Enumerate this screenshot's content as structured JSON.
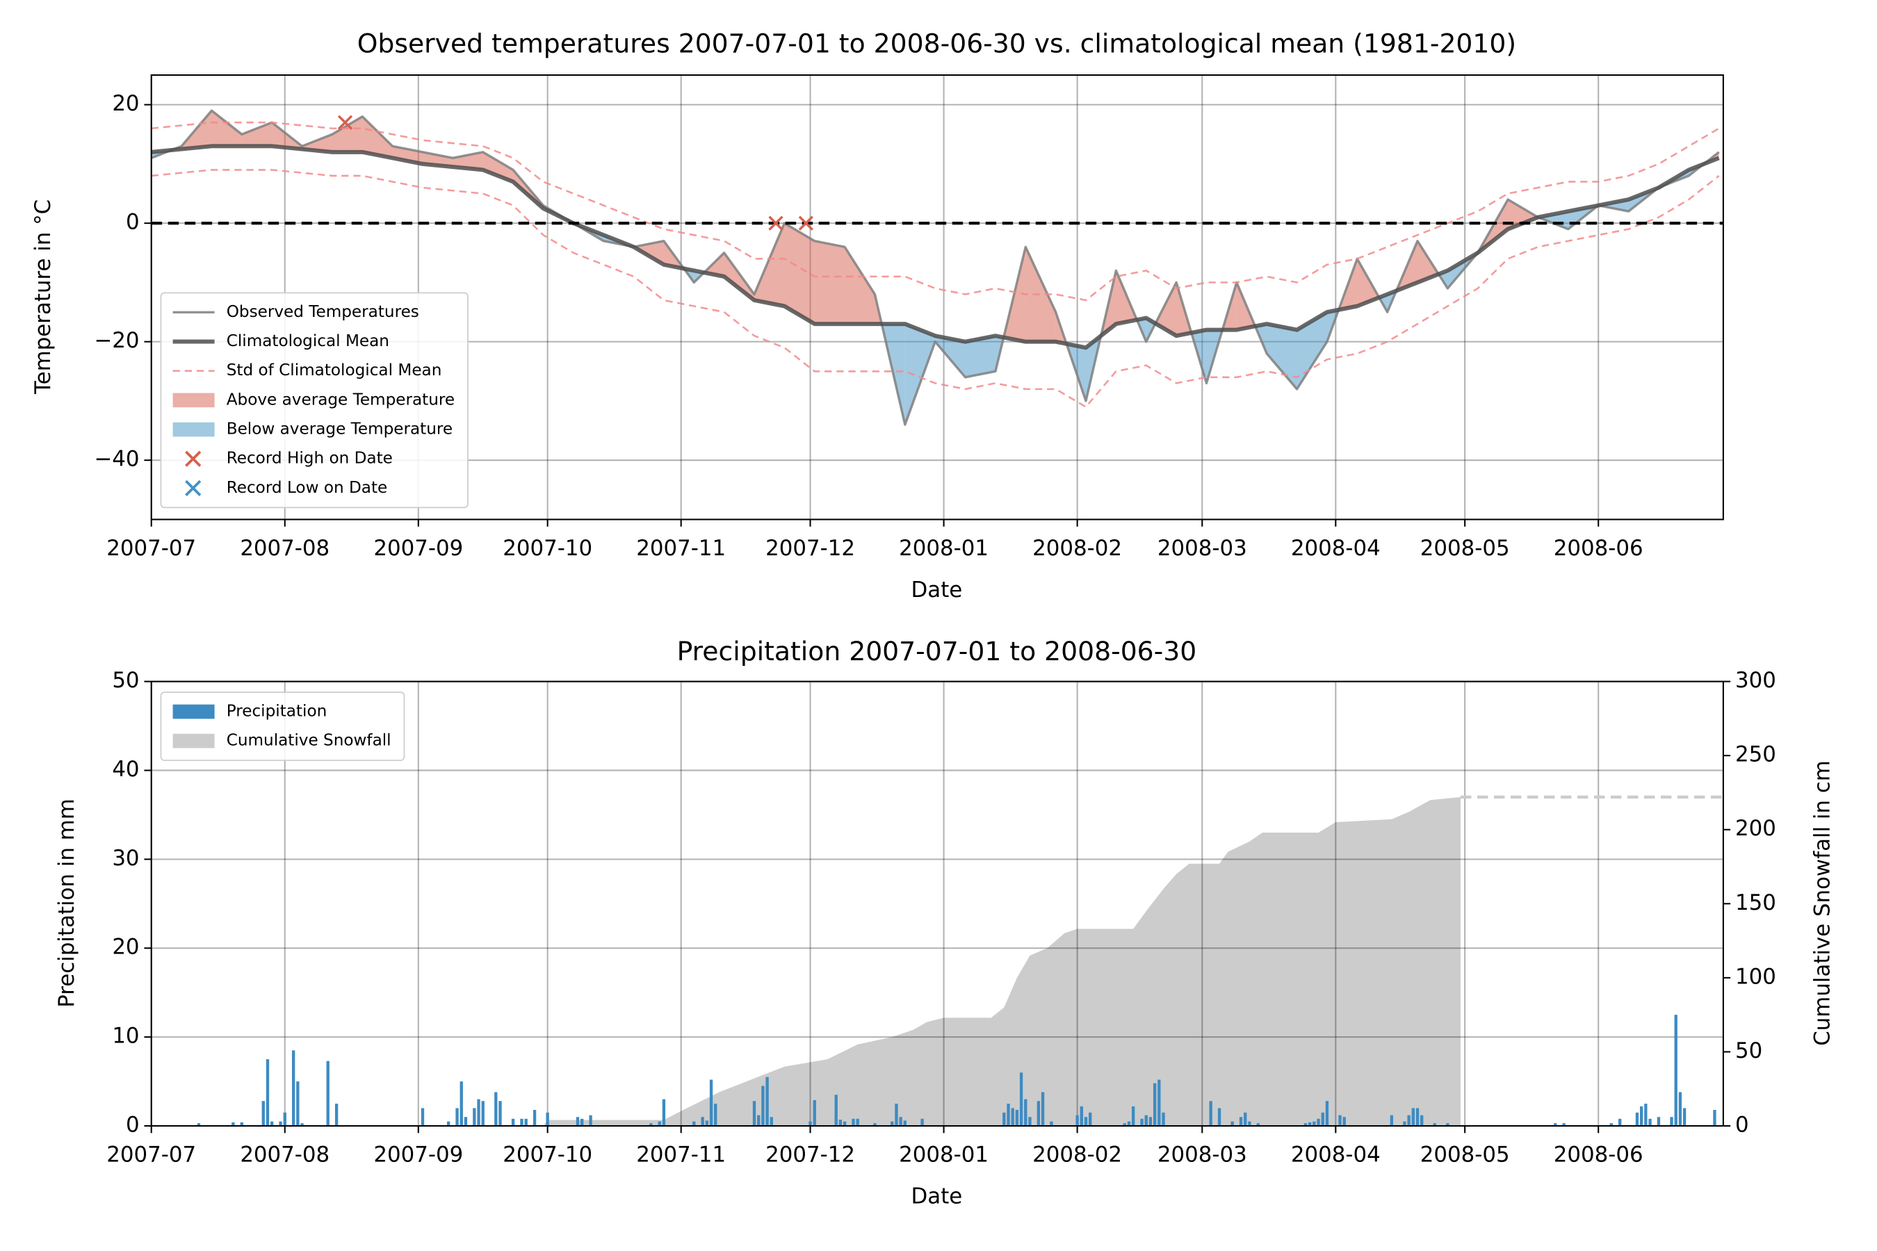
{
  "chart_data": [
    {
      "type": "line",
      "title": "Observed temperatures 2007-07-01 to 2008-06-30 vs. climatological mean (1981-2010)",
      "xlabel": "Date",
      "ylabel": "Temperature in °C",
      "x": [
        "2007-07-01",
        "2007-07-08",
        "2007-07-15",
        "2007-07-22",
        "2007-07-29",
        "2007-08-05",
        "2007-08-12",
        "2007-08-19",
        "2007-08-26",
        "2007-09-02",
        "2007-09-09",
        "2007-09-16",
        "2007-09-23",
        "2007-09-30",
        "2007-10-07",
        "2007-10-14",
        "2007-10-21",
        "2007-10-28",
        "2007-11-04",
        "2007-11-11",
        "2007-11-18",
        "2007-11-25",
        "2007-12-02",
        "2007-12-09",
        "2007-12-16",
        "2007-12-23",
        "2007-12-30",
        "2008-01-06",
        "2008-01-13",
        "2008-01-20",
        "2008-01-27",
        "2008-02-03",
        "2008-02-10",
        "2008-02-17",
        "2008-02-24",
        "2008-03-02",
        "2008-03-09",
        "2008-03-16",
        "2008-03-23",
        "2008-03-30",
        "2008-04-06",
        "2008-04-13",
        "2008-04-20",
        "2008-04-27",
        "2008-05-04",
        "2008-05-11",
        "2008-05-18",
        "2008-05-25",
        "2008-06-01",
        "2008-06-08",
        "2008-06-15",
        "2008-06-22",
        "2008-06-29"
      ],
      "series": [
        {
          "name": "Observed Temperatures",
          "color": "#7f7f7f",
          "values": [
            11,
            13,
            19,
            15,
            17,
            13,
            15,
            18,
            13,
            12,
            11,
            12,
            9,
            3,
            0,
            -3,
            -4,
            -3,
            -10,
            -5,
            -12,
            0,
            -3,
            -4,
            -12,
            -34,
            -20,
            -26,
            -25,
            -4,
            -15,
            -30,
            -8,
            -20,
            -10,
            -27,
            -10,
            -22,
            -28,
            -20,
            -6,
            -15,
            -3,
            -11,
            -5,
            4,
            1,
            -1,
            3,
            2,
            6,
            8,
            12
          ]
        },
        {
          "name": "Climatological Mean",
          "color": "#4d4d4d",
          "values": [
            12,
            12.5,
            13,
            13,
            13,
            12.5,
            12,
            12,
            11,
            10,
            9.5,
            9,
            7,
            2.5,
            0,
            -2,
            -4,
            -7,
            -8,
            -9,
            -13,
            -14,
            -17,
            -17,
            -17,
            -17,
            -19,
            -20,
            -19,
            -20,
            -20,
            -21,
            -17,
            -16,
            -19,
            -18,
            -18,
            -17,
            -18,
            -15,
            -14,
            -12,
            -10,
            -8,
            -5,
            -1,
            1,
            2,
            3,
            4,
            6,
            9,
            11
          ]
        },
        {
          "name": "Std of Climatological Mean",
          "color": "#f28a8a",
          "style": "dashed",
          "upper": [
            16,
            16.5,
            17,
            17,
            17,
            16.5,
            16,
            16,
            15,
            14,
            13.5,
            13,
            11,
            7,
            5,
            3,
            1,
            -1,
            -2,
            -3,
            -6,
            -6,
            -9,
            -9,
            -9,
            -9,
            -11,
            -12,
            -11,
            -12,
            -12,
            -13,
            -9,
            -8,
            -11,
            -10,
            -10,
            -9,
            -10,
            -7,
            -6,
            -4,
            -2,
            0,
            2,
            5,
            6,
            7,
            7,
            8,
            10,
            13,
            16
          ],
          "lower": [
            8,
            8.5,
            9,
            9,
            9,
            8.5,
            8,
            8,
            7,
            6,
            5.5,
            5,
            3,
            -2,
            -5,
            -7,
            -9,
            -13,
            -14,
            -15,
            -19,
            -21,
            -25,
            -25,
            -25,
            -25,
            -27,
            -28,
            -27,
            -28,
            -28,
            -31,
            -25,
            -24,
            -27,
            -26,
            -26,
            -25,
            -26,
            -23,
            -22,
            -20,
            -17,
            -14,
            -11,
            -6,
            -4,
            -3,
            -2,
            -1,
            1,
            4,
            8
          ]
        }
      ],
      "fills": [
        {
          "name": "Above average Temperature",
          "color": "#d6604d",
          "where": "above"
        },
        {
          "name": "Below average Temperature",
          "color": "#4393c3",
          "where": "below"
        }
      ],
      "records": [
        {
          "name": "Record High on Date",
          "color": "#d6604d",
          "x": [
            "2007-08-15",
            "2007-11-23",
            "2007-11-30"
          ],
          "values": [
            17,
            0,
            0
          ]
        },
        {
          "name": "Record Low on Date",
          "color": "#4393c3",
          "x": [],
          "values": []
        }
      ],
      "hline": 0,
      "xlim": [
        "2007-07-01",
        "2008-06-30"
      ],
      "xticks": [
        {
          "value": "2007-07-01",
          "label": "2007-07"
        },
        {
          "value": "2007-08-01",
          "label": "2007-08"
        },
        {
          "value": "2007-09-01",
          "label": "2007-09"
        },
        {
          "value": "2007-10-01",
          "label": "2007-10"
        },
        {
          "value": "2007-11-01",
          "label": "2007-11"
        },
        {
          "value": "2007-12-01",
          "label": "2007-12"
        },
        {
          "value": "2008-01-01",
          "label": "2008-01"
        },
        {
          "value": "2008-02-01",
          "label": "2008-02"
        },
        {
          "value": "2008-03-01",
          "label": "2008-03"
        },
        {
          "value": "2008-04-01",
          "label": "2008-04"
        },
        {
          "value": "2008-05-01",
          "label": "2008-05"
        },
        {
          "value": "2008-06-01",
          "label": "2008-06"
        }
      ],
      "ylim": [
        -50,
        25
      ],
      "yticks": [
        {
          "value": -40,
          "label": "−40"
        },
        {
          "value": -20,
          "label": "−20"
        },
        0,
        20
      ],
      "grid": true,
      "legend": "lower left"
    },
    {
      "type": "bar",
      "title": "Precipitation 2007-07-01 to 2008-06-30",
      "xlabel": "Date",
      "ylabel": "Precipitation in mm",
      "y2label": "Cumulative Snowfall in cm",
      "series": [
        {
          "name": "Precipitation",
          "color": "#3d8bc2",
          "x": [
            "2007-07-12",
            "2007-07-20",
            "2007-07-22",
            "2007-07-27",
            "2007-07-28",
            "2007-07-29",
            "2007-07-31",
            "2007-08-01",
            "2007-08-03",
            "2007-08-04",
            "2007-08-05",
            "2007-08-11",
            "2007-08-13",
            "2007-09-02",
            "2007-09-08",
            "2007-09-10",
            "2007-09-11",
            "2007-09-12",
            "2007-09-14",
            "2007-09-15",
            "2007-09-16",
            "2007-09-19",
            "2007-09-20",
            "2007-09-23",
            "2007-09-25",
            "2007-09-26",
            "2007-09-28",
            "2007-10-01",
            "2007-10-08",
            "2007-10-09",
            "2007-10-11",
            "2007-10-25",
            "2007-10-27",
            "2007-10-28",
            "2007-11-04",
            "2007-11-06",
            "2007-11-07",
            "2007-11-08",
            "2007-11-09",
            "2007-11-18",
            "2007-11-19",
            "2007-11-20",
            "2007-11-21",
            "2007-11-22",
            "2007-12-01",
            "2007-12-02",
            "2007-12-07",
            "2007-12-08",
            "2007-12-09",
            "2007-12-11",
            "2007-12-12",
            "2007-12-16",
            "2007-12-20",
            "2007-12-21",
            "2007-12-22",
            "2007-12-23",
            "2007-12-27",
            "2008-01-15",
            "2008-01-16",
            "2008-01-17",
            "2008-01-18",
            "2008-01-19",
            "2008-01-20",
            "2008-01-21",
            "2008-01-23",
            "2008-01-24",
            "2008-01-26",
            "2008-02-01",
            "2008-02-02",
            "2008-02-03",
            "2008-02-04",
            "2008-02-12",
            "2008-02-13",
            "2008-02-14",
            "2008-02-16",
            "2008-02-17",
            "2008-02-18",
            "2008-02-19",
            "2008-02-20",
            "2008-02-21",
            "2008-03-03",
            "2008-03-05",
            "2008-03-08",
            "2008-03-10",
            "2008-03-11",
            "2008-03-12",
            "2008-03-14",
            "2008-03-25",
            "2008-03-26",
            "2008-03-27",
            "2008-03-28",
            "2008-03-29",
            "2008-03-30",
            "2008-04-02",
            "2008-04-03",
            "2008-04-14",
            "2008-04-17",
            "2008-04-18",
            "2008-04-19",
            "2008-04-20",
            "2008-04-21",
            "2008-04-24",
            "2008-04-27",
            "2008-05-22",
            "2008-05-24",
            "2008-06-04",
            "2008-06-06",
            "2008-06-10",
            "2008-06-11",
            "2008-06-12",
            "2008-06-13",
            "2008-06-15",
            "2008-06-18",
            "2008-06-19",
            "2008-06-20",
            "2008-06-21",
            "2008-06-28"
          ],
          "values": [
            0.3,
            0.4,
            0.4,
            2.8,
            7.5,
            0.5,
            0.5,
            1.5,
            8.5,
            5.0,
            0.3,
            7.3,
            2.5,
            2.0,
            0.5,
            2.0,
            5.0,
            1.0,
            2.0,
            3.0,
            2.8,
            3.8,
            2.8,
            0.8,
            0.8,
            0.8,
            1.8,
            1.5,
            1.0,
            0.8,
            1.2,
            0.3,
            0.5,
            3.0,
            0.5,
            1.0,
            0.6,
            5.2,
            2.5,
            2.8,
            1.2,
            4.5,
            5.5,
            1.0,
            0.5,
            2.9,
            3.5,
            0.7,
            0.5,
            0.8,
            0.8,
            0.3,
            0.5,
            2.5,
            1.0,
            0.6,
            0.8,
            1.5,
            2.5,
            2.0,
            1.8,
            6.0,
            3.0,
            1.0,
            2.8,
            3.8,
            0.5,
            1.2,
            2.2,
            1.0,
            1.5,
            0.3,
            0.5,
            2.2,
            0.8,
            1.2,
            1.0,
            4.8,
            5.2,
            1.5,
            2.8,
            2.0,
            0.5,
            1.0,
            1.5,
            0.5,
            0.3,
            0.3,
            0.4,
            0.5,
            0.8,
            1.5,
            2.8,
            1.2,
            1.0,
            1.2,
            0.5,
            1.2,
            2.0,
            2.0,
            1.2,
            0.3,
            0.3,
            0.3,
            0.3,
            0.3,
            0.8,
            1.5,
            2.2,
            2.5,
            0.8,
            1.0,
            1.0,
            12.5,
            3.8,
            2.0,
            1.8
          ]
        },
        {
          "name": "Cumulative Snowfall",
          "color": "#cccccc",
          "type": "area",
          "axis": "y2",
          "x": [
            "2007-09-30",
            "2007-10-01",
            "2007-10-28",
            "2007-11-01",
            "2007-11-10",
            "2007-11-25",
            "2007-12-05",
            "2007-12-12",
            "2007-12-20",
            "2007-12-25",
            "2007-12-28",
            "2008-01-01",
            "2008-01-12",
            "2008-01-15",
            "2008-01-18",
            "2008-01-21",
            "2008-01-25",
            "2008-01-29",
            "2008-02-01",
            "2008-02-14",
            "2008-02-17",
            "2008-02-21",
            "2008-02-24",
            "2008-02-27",
            "2008-03-05",
            "2008-03-07",
            "2008-03-12",
            "2008-03-15",
            "2008-03-28",
            "2008-04-01",
            "2008-04-14",
            "2008-04-18",
            "2008-04-23",
            "2008-04-30"
          ],
          "values": [
            0,
            4,
            4,
            10,
            23,
            40,
            45,
            55,
            60,
            65,
            70,
            73,
            73,
            80,
            100,
            115,
            120,
            130,
            133,
            133,
            145,
            160,
            170,
            177,
            177,
            185,
            192,
            198,
            198,
            205,
            207,
            212,
            220,
            222
          ]
        },
        {
          "color": "#cccccc",
          "style": "dashed",
          "axis": "y2",
          "x": [
            "2008-04-30",
            "2008-06-30"
          ],
          "values": [
            222,
            222
          ]
        }
      ],
      "xlim": [
        "2007-07-01",
        "2008-06-30"
      ],
      "xticks": [
        {
          "value": "2007-07-01",
          "label": "2007-07"
        },
        {
          "value": "2007-08-01",
          "label": "2007-08"
        },
        {
          "value": "2007-09-01",
          "label": "2007-09"
        },
        {
          "value": "2007-10-01",
          "label": "2007-10"
        },
        {
          "value": "2007-11-01",
          "label": "2007-11"
        },
        {
          "value": "2007-12-01",
          "label": "2007-12"
        },
        {
          "value": "2008-01-01",
          "label": "2008-01"
        },
        {
          "value": "2008-02-01",
          "label": "2008-02"
        },
        {
          "value": "2008-03-01",
          "label": "2008-03"
        },
        {
          "value": "2008-04-01",
          "label": "2008-04"
        },
        {
          "value": "2008-05-01",
          "label": "2008-05"
        },
        {
          "value": "2008-06-01",
          "label": "2008-06"
        }
      ],
      "ylim": [
        0,
        50
      ],
      "yticks": [
        0,
        10,
        20,
        30,
        40,
        50
      ],
      "y2lim": [
        0,
        300
      ],
      "y2ticks": [
        0,
        50,
        100,
        150,
        200,
        250,
        300
      ],
      "grid": true,
      "legend": "upper left"
    }
  ]
}
